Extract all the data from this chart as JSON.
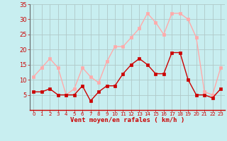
{
  "hours": [
    0,
    1,
    2,
    3,
    4,
    5,
    6,
    7,
    8,
    9,
    10,
    11,
    12,
    13,
    14,
    15,
    16,
    17,
    18,
    19,
    20,
    21,
    22,
    23
  ],
  "wind_mean": [
    6,
    6,
    7,
    5,
    5,
    5,
    8,
    3,
    6,
    8,
    8,
    12,
    15,
    17,
    15,
    12,
    12,
    19,
    19,
    10,
    5,
    5,
    4,
    7
  ],
  "wind_gust": [
    11,
    14,
    17,
    14,
    5,
    7,
    14,
    11,
    9,
    16,
    21,
    21,
    24,
    27,
    32,
    29,
    25,
    32,
    32,
    30,
    24,
    6,
    5,
    14
  ],
  "mean_color": "#cc0000",
  "gust_color": "#ffaaaa",
  "bg_color": "#c8eef0",
  "grid_color": "#b0c8c8",
  "xlabel": "Vent moyen/en rafales ( km/h )",
  "xlabel_color": "#cc0000",
  "tick_color": "#cc0000",
  "ylim": [
    0,
    35
  ],
  "yticks": [
    5,
    10,
    15,
    20,
    25,
    30,
    35
  ],
  "marker": "s",
  "markersize": 2.5,
  "linewidth_mean": 1.0,
  "linewidth_gust": 1.0
}
